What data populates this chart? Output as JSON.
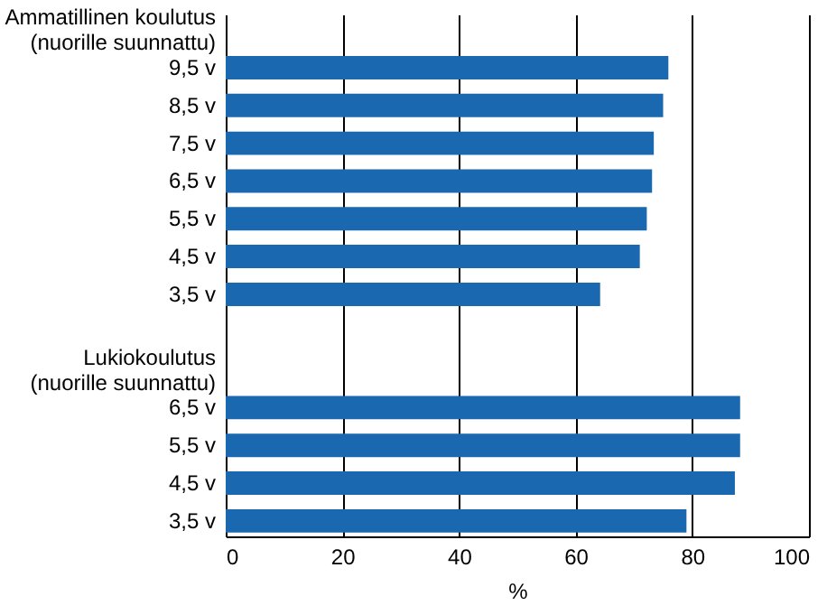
{
  "chart_data": {
    "type": "bar",
    "orientation": "horizontal",
    "categories": [
      "Ammatillinen koulutus\n(nuorille suunnattu)",
      "9,5 v",
      "8,5 v",
      "7,5 v",
      "6,5 v",
      "5,5 v",
      "4,5 v",
      "3,5 v",
      null,
      "Lukiokoulutus\n(nuorille suunnattu)",
      "6,5 v",
      "5,5 v",
      "4,5 v",
      "3,5 v"
    ],
    "values": [
      null,
      75.9,
      75.0,
      73.4,
      73.1,
      72.2,
      71.0,
      64.2,
      null,
      null,
      88.2,
      88.2,
      87.3,
      79.0
    ],
    "color": "#1a69b0",
    "xlabel": "%",
    "xlim": [
      0,
      100
    ],
    "xticks": [
      0,
      20,
      40,
      60,
      80,
      100
    ],
    "grid": "x"
  }
}
